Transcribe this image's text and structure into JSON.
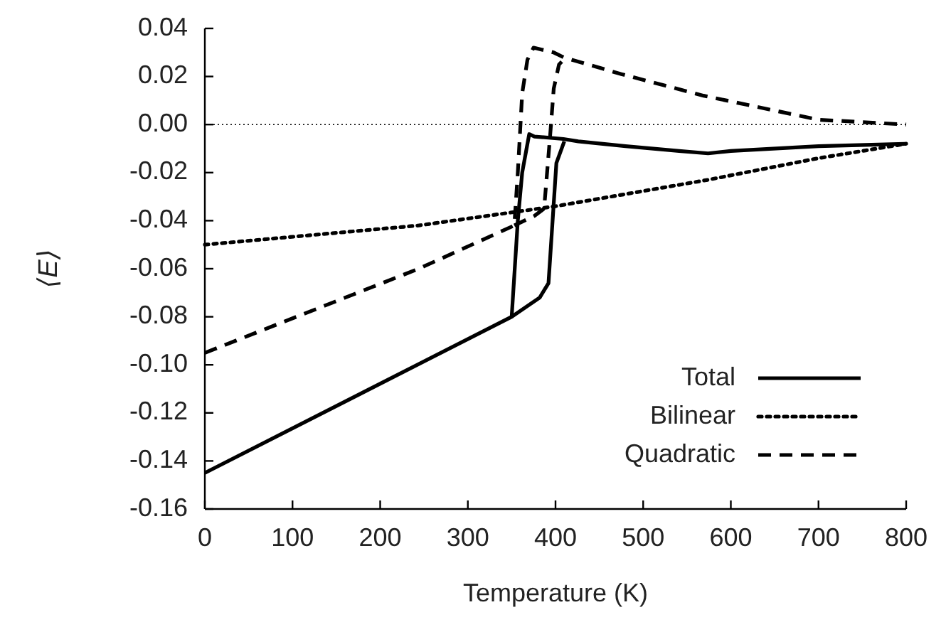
{
  "chart_data": {
    "type": "line",
    "xlabel": "Temperature (K)",
    "ylabel": "⟨E⟩",
    "xlim": [
      0,
      800
    ],
    "ylim": [
      -0.16,
      0.04
    ],
    "xticks": [
      0,
      100,
      200,
      300,
      400,
      500,
      600,
      700,
      800
    ],
    "yticks": [
      {
        "value": -0.16,
        "label": "-0.16"
      },
      {
        "value": -0.14,
        "label": "-0.14"
      },
      {
        "value": -0.12,
        "label": "-0.12"
      },
      {
        "value": -0.1,
        "label": "-0.10"
      },
      {
        "value": -0.08,
        "label": "-0.08"
      },
      {
        "value": -0.06,
        "label": "-0.06"
      },
      {
        "value": -0.04,
        "label": "-0.04"
      },
      {
        "value": -0.02,
        "label": "-0.02"
      },
      {
        "value": 0,
        "label": "0.00"
      },
      {
        "value": 0.02,
        "label": "0.02"
      },
      {
        "value": 0.04,
        "label": "0.04"
      }
    ],
    "legend": "bottom right",
    "ref_lines": [
      {
        "axis": "y",
        "value": 0,
        "color": "#000000",
        "line_style": "dotted"
      }
    ],
    "series": [
      {
        "name": "Total",
        "color": "#000000",
        "line_style": "solid",
        "x": [
          0,
          350,
          357,
          362,
          370,
          376,
          409,
          426,
          480,
          541,
          574,
          600,
          700,
          800
        ],
        "values": [
          -0.145,
          -0.08,
          -0.04,
          -0.02,
          -0.004,
          -0.005,
          -0.006,
          -0.007,
          -0.009,
          -0.011,
          -0.012,
          -0.011,
          -0.009,
          -0.008
        ]
      },
      {
        "color": "#000000",
        "line_style": "solid",
        "x": [
          350,
          382,
          392,
          401,
          410
        ],
        "values": [
          -0.08,
          -0.072,
          -0.066,
          -0.016,
          -0.007
        ]
      },
      {
        "name": "Bilinear",
        "color": "#000000",
        "line_style": "dotted",
        "x": [
          0,
          244,
          400,
          574,
          700,
          800
        ],
        "values": [
          -0.05,
          -0.042,
          -0.034,
          -0.023,
          -0.014,
          -0.008
        ]
      },
      {
        "name": "Quadratic",
        "color": "#000000",
        "line_style": "dashed",
        "x": [
          0,
          244,
          353,
          357,
          362,
          368,
          375,
          398,
          409,
          475,
          569,
          700,
          800
        ],
        "values": [
          -0.095,
          -0.06,
          -0.042,
          -0.02,
          0.013,
          0.027,
          0.032,
          0.03,
          0.028,
          0.021,
          0.012,
          0.002,
          0
        ]
      },
      {
        "color": "#000000",
        "line_style": "dashed",
        "x": [
          353,
          376,
          387,
          394,
          398,
          404,
          412
        ],
        "values": [
          -0.042,
          -0.038,
          -0.035,
          -0.004,
          0.015,
          0.025,
          0.028
        ]
      }
    ]
  }
}
